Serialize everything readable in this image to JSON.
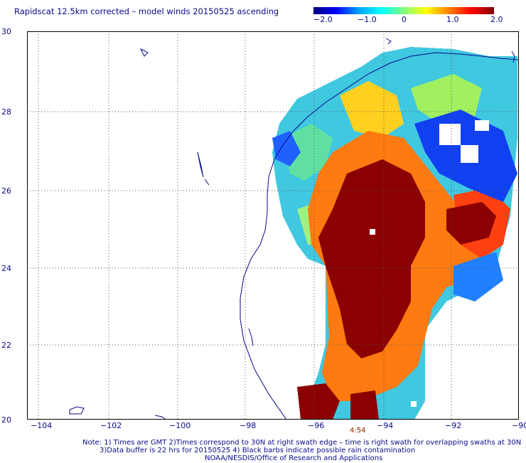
{
  "title": "Rapidscat 12.5km corrected – model winds 20150525 ascending",
  "colorbar": {
    "ticks": [
      "−2.0",
      "−1.0",
      "0",
      "1.0",
      "2.0"
    ],
    "colors": [
      "#00007f",
      "#0000ff",
      "#00ffff",
      "#ffff00",
      "#ff0000",
      "#800000"
    ]
  },
  "axes": {
    "y_labels": [
      "30",
      "28",
      "26",
      "24",
      "22",
      "20"
    ],
    "x_labels": [
      "−104",
      "−102",
      "−100",
      "−98",
      "−96",
      "−94",
      "−92",
      "−90"
    ],
    "lat_range": [
      20,
      30
    ],
    "lon_range": [
      -105,
      -90
    ]
  },
  "timestamp": "4:54",
  "notes": {
    "line1": "Note: 1) Times are GMT 2)Times correspond to 30N at right swath edge – time is right swath for overlapping swaths at 30N",
    "line2": "3)Data buffer is 22 hrs for 20150525 4) Black barbs indicate possible rain contamination",
    "line3": "NOAA/NESDIS/Office of Research and Applications"
  }
}
